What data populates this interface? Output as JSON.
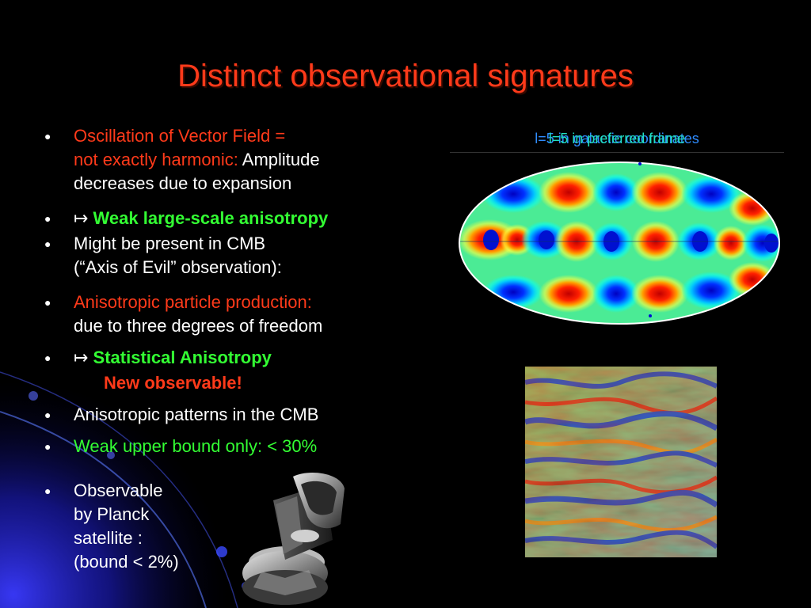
{
  "slide": {
    "title": "Distinct observational signatures",
    "bullets": [
      {
        "line1_red": "Oscillation of Vector Field =",
        "line2_red": "not exactly harmonic: ",
        "line2_white": "Amplitude",
        "line3": "decreases due to expansion"
      },
      {
        "arrow": "↦ ",
        "text": "Weak large-scale anisotropy"
      },
      {
        "line1": "Might be present in CMB",
        "line2": "(“Axis of Evil” observation):"
      },
      {
        "line1_red": "Anisotropic particle production:",
        "line2": "due to three degrees of freedom"
      },
      {
        "arrow": "↦ ",
        "text": "Statistical Anisotropy",
        "line2_red": "New observable!"
      },
      {
        "text": "Anisotropic patterns in the CMB"
      },
      {
        "text": "Weak upper bound only:  < 30%"
      },
      {
        "line1": "Observable",
        "line2": "by Planck",
        "line3": "satellite :",
        "line4": "(bound < 2%)"
      }
    ],
    "figure_caption_a": "l=5 in galactic coordinates",
    "figure_caption_b": "l=5 in preferred frame"
  },
  "colors": {
    "title": "#ff3a1a",
    "emphasis_red": "#ff3a1a",
    "emphasis_green": "#33ff33",
    "caption_blue": "#2f8cff",
    "caption_teal": "#20e0c0",
    "background": "#000000"
  },
  "icons": {
    "bullet": "bullet-dot-icon",
    "satellite": "planck-satellite-icon"
  }
}
